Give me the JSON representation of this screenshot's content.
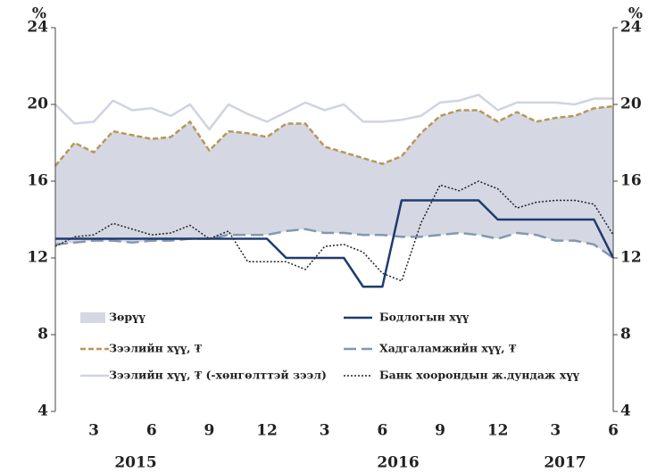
{
  "chart_data": {
    "type": "line",
    "y_unit": "%",
    "categories": [
      null,
      null,
      "3",
      null,
      null,
      "6",
      null,
      null,
      "9",
      null,
      null,
      "12",
      null,
      null,
      "3",
      null,
      null,
      "6",
      null,
      null,
      "9",
      null,
      null,
      "12",
      null,
      null,
      "3",
      null,
      null,
      "6"
    ],
    "years": [
      "2015",
      "2016",
      "2017"
    ],
    "ylim": [
      4,
      24
    ],
    "yticks": [
      4,
      8,
      12,
      16,
      20,
      24
    ],
    "y2lim": [
      4,
      24
    ],
    "y2ticks": [
      4,
      8,
      12,
      16,
      20,
      24
    ],
    "grid": false,
    "legend": "bottom",
    "series": [
      {
        "name": "Зөрүү",
        "style": "area",
        "base": "Хадгаламжийн хүү, ₮",
        "color": "#d5d8e3",
        "values": [
          4.1,
          5.2,
          4.6,
          5.7,
          5.6,
          5.3,
          5.4,
          6.1,
          4.6,
          5.4,
          5.3,
          5.1,
          5.6,
          5.5,
          4.5,
          4.2,
          4.0,
          3.7,
          4.2,
          5.4,
          6.2,
          6.4,
          6.5,
          6.1,
          6.3,
          5.9,
          6.4,
          6.5,
          7.1,
          7.9
        ]
      },
      {
        "name": "Бодлогын хүү",
        "style": "solid",
        "color": "#1f3b70",
        "values": [
          13,
          13,
          13,
          13,
          13,
          13,
          13,
          13,
          13,
          13,
          13,
          13,
          12,
          12,
          12,
          12,
          10.5,
          10.5,
          15,
          15,
          15,
          15,
          15,
          14,
          14,
          14,
          14,
          14,
          14,
          12
        ]
      },
      {
        "name": "Зээлийн хүү, ₮",
        "style": "dashed",
        "color": "#b8965a",
        "values": [
          16.8,
          18.0,
          17.5,
          18.6,
          18.4,
          18.2,
          18.3,
          19.1,
          17.6,
          18.6,
          18.5,
          18.3,
          19.0,
          19.0,
          17.8,
          17.5,
          17.2,
          16.9,
          17.3,
          18.5,
          19.4,
          19.7,
          19.7,
          19.1,
          19.6,
          19.1,
          19.3,
          19.4,
          19.8,
          19.9
        ]
      },
      {
        "name": "Хадгаламжийн хүү, ₮",
        "style": "longdash",
        "color": "#8497b0",
        "values": [
          12.7,
          12.8,
          12.9,
          12.9,
          12.8,
          12.9,
          12.9,
          13.0,
          13.0,
          13.2,
          13.2,
          13.2,
          13.4,
          13.5,
          13.3,
          13.3,
          13.2,
          13.2,
          13.1,
          13.1,
          13.2,
          13.3,
          13.2,
          13.0,
          13.3,
          13.2,
          12.9,
          12.9,
          12.7,
          12.0
        ]
      },
      {
        "name": "Зээлийн хүү, ₮ (-хөнгөлттэй зээл)",
        "style": "solid",
        "color": "#d0d3e2",
        "values": [
          20.0,
          19.0,
          19.1,
          20.2,
          19.7,
          19.8,
          19.4,
          20.0,
          18.7,
          20.0,
          19.5,
          19.1,
          19.6,
          20.1,
          19.7,
          20.0,
          19.1,
          19.1,
          19.2,
          19.4,
          20.1,
          20.2,
          20.5,
          19.7,
          20.1,
          20.1,
          20.1,
          20.0,
          20.3,
          20.3
        ]
      },
      {
        "name": "Банк хоорондын ж.дундаж хүү",
        "style": "dotted",
        "color": "#222222",
        "values": [
          12.6,
          13.1,
          13.2,
          13.8,
          13.5,
          13.2,
          13.3,
          13.7,
          13.0,
          13.4,
          11.8,
          11.8,
          11.8,
          11.4,
          12.6,
          12.7,
          12.3,
          11.2,
          10.8,
          13.8,
          15.8,
          15.5,
          16.0,
          15.6,
          14.6,
          14.9,
          15.0,
          15.0,
          14.8,
          13.2
        ]
      }
    ]
  }
}
